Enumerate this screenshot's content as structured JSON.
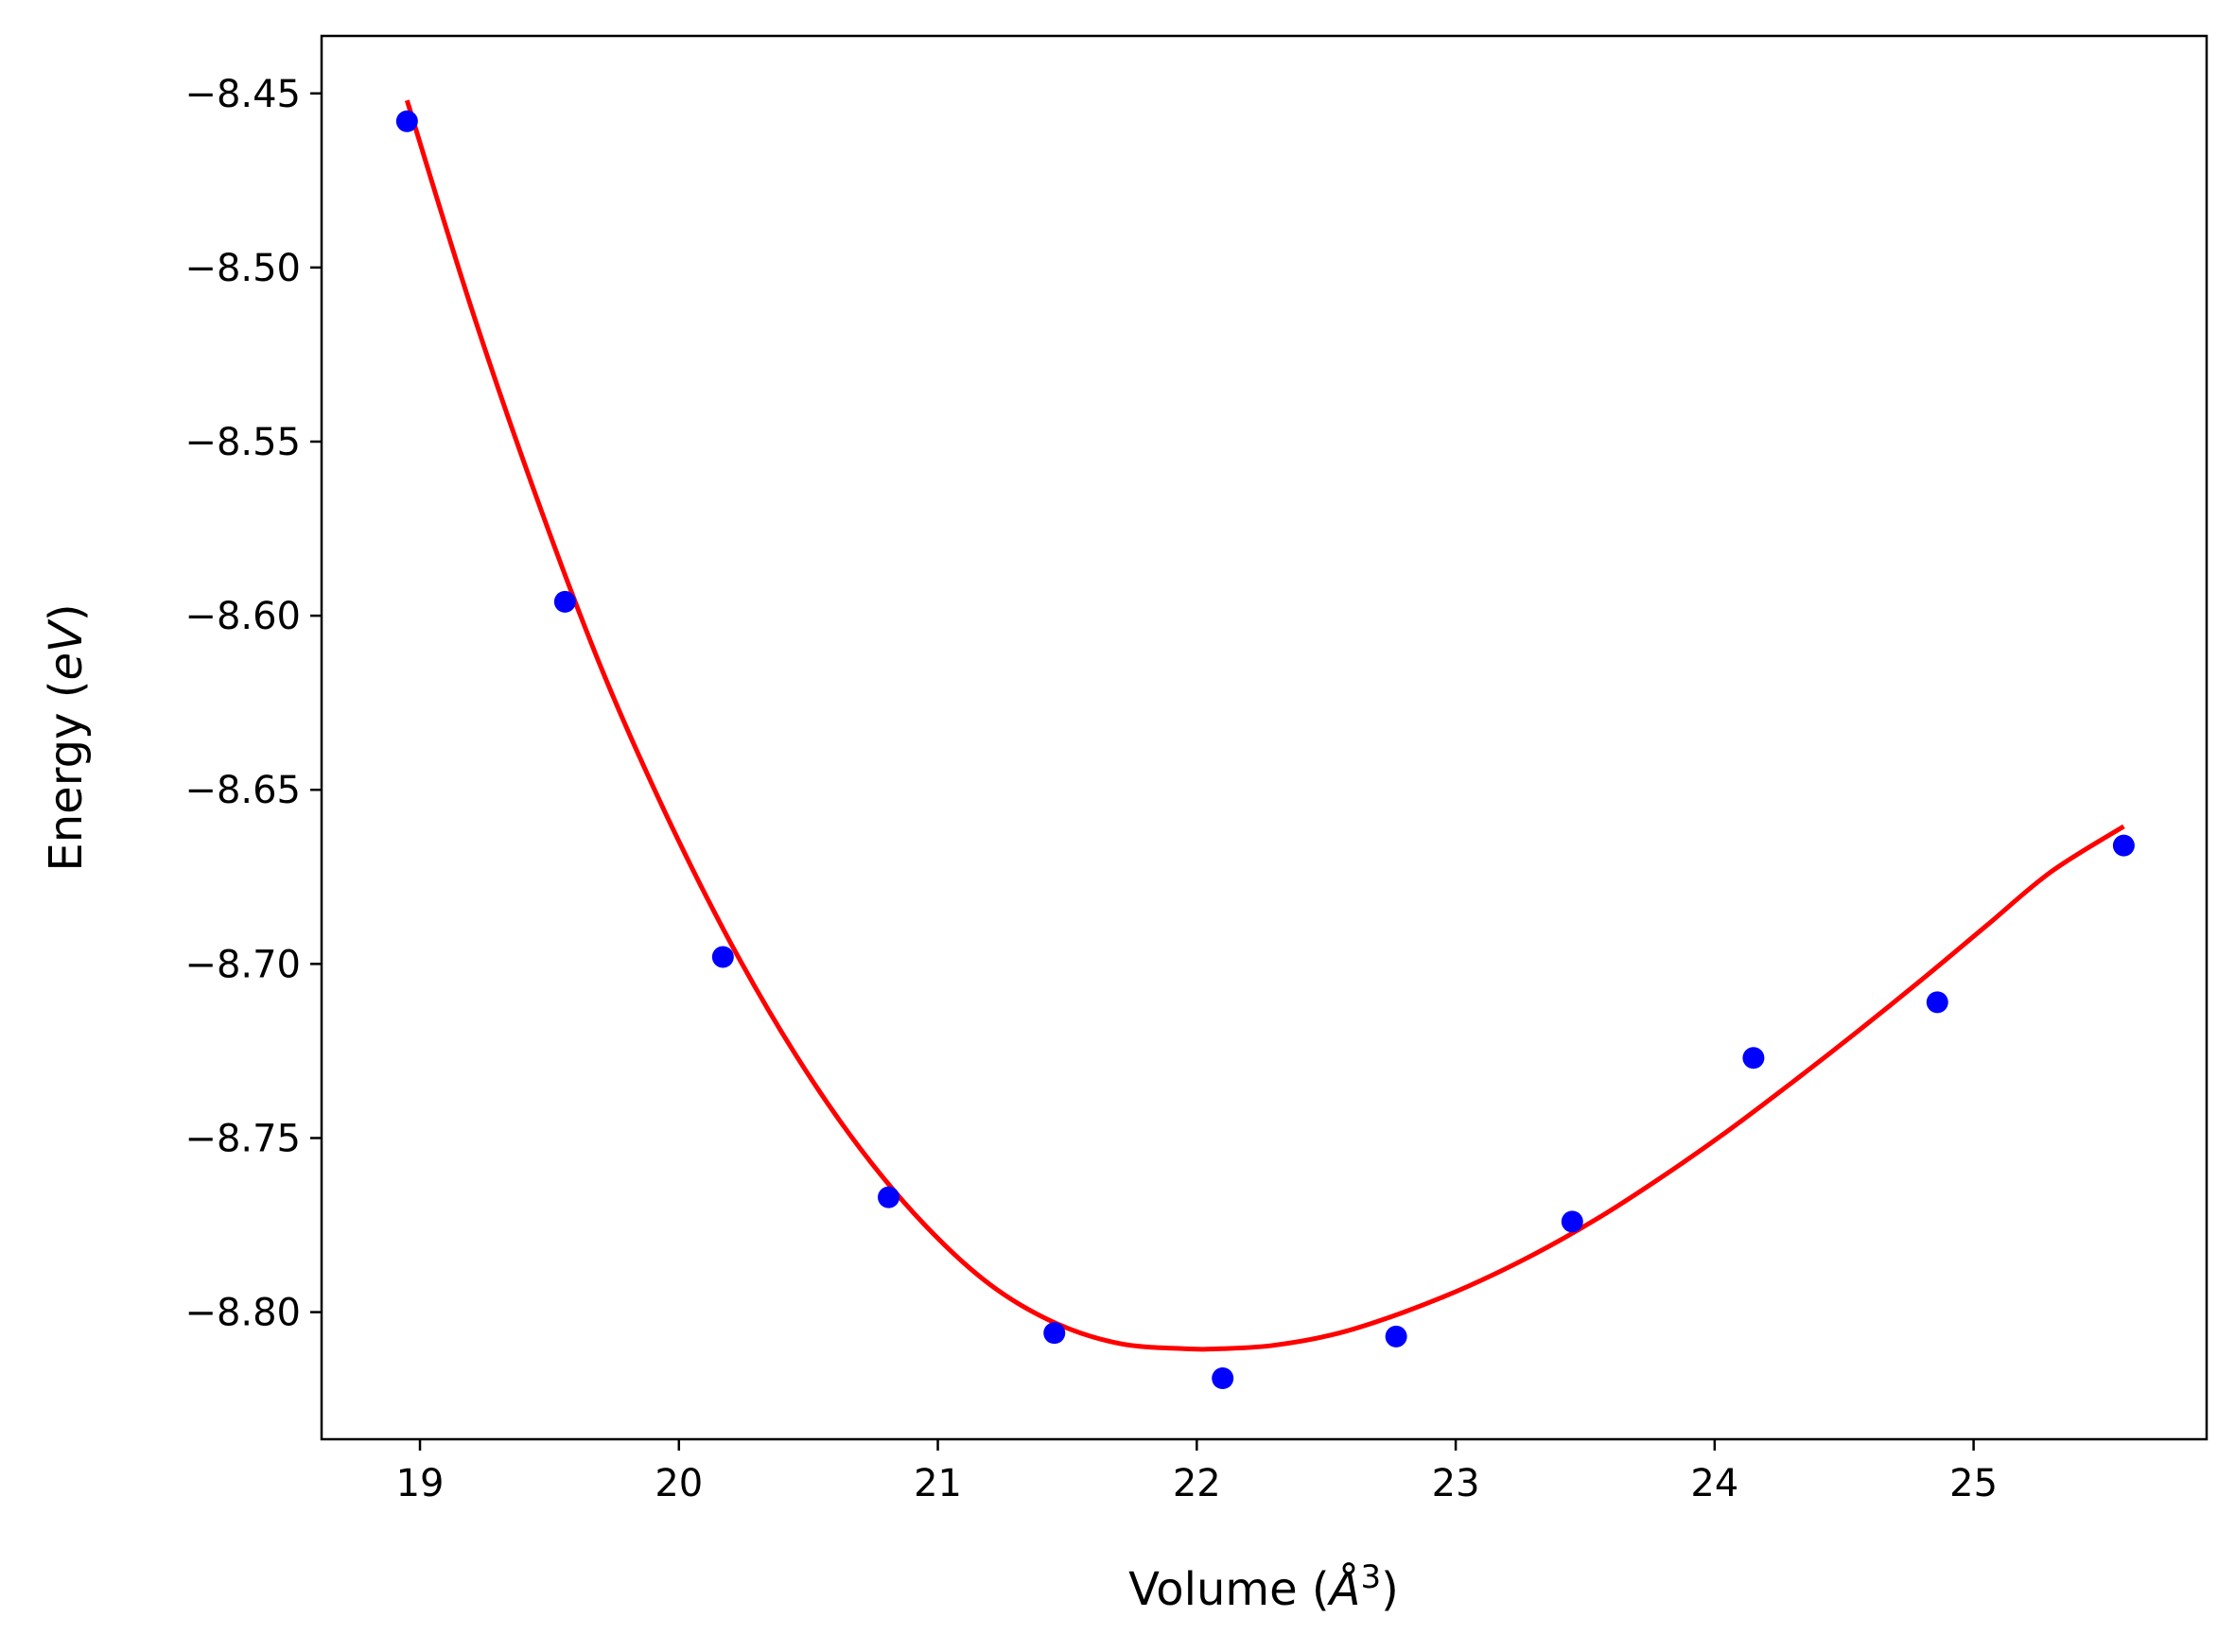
{
  "chart_data": {
    "type": "scatter",
    "title": "",
    "xlabel": {
      "prefix": "Volume (",
      "math": "Å",
      "sup": "3",
      "suffix": ")"
    },
    "ylabel": {
      "prefix": "Energy (",
      "math": "eV",
      "suffix": ")"
    },
    "xlim": [
      18.62,
      25.9
    ],
    "ylim": [
      -8.8365,
      -8.4335
    ],
    "xticks": [
      19,
      20,
      21,
      22,
      23,
      24,
      25
    ],
    "xtick_labels": [
      "19",
      "20",
      "21",
      "22",
      "23",
      "24",
      "25"
    ],
    "yticks": [
      -8.45,
      -8.5,
      -8.55,
      -8.6,
      -8.65,
      -8.7,
      -8.75,
      -8.8
    ],
    "ytick_labels": [
      "−8.45",
      "−8.50",
      "−8.55",
      "−8.60",
      "−8.65",
      "−8.70",
      "−8.75",
      "−8.80"
    ],
    "grid": false,
    "legend": "none",
    "series": [
      {
        "kind": "scatter",
        "color": "#0000ff",
        "x": [
          18.95,
          19.56,
          20.17,
          20.81,
          21.45,
          22.1,
          22.77,
          23.45,
          24.15,
          24.86,
          25.58
        ],
        "y": [
          -8.458,
          -8.596,
          -8.698,
          -8.767,
          -8.806,
          -8.819,
          -8.807,
          -8.774,
          -8.727,
          -8.711,
          -8.666
        ]
      },
      {
        "kind": "line",
        "color": "#ff0000",
        "x": [
          18.95,
          19.2,
          19.45,
          19.7,
          19.95,
          20.2,
          20.45,
          20.7,
          20.95,
          21.2,
          21.45,
          21.7,
          21.95,
          22.1,
          22.3,
          22.55,
          22.8,
          23.05,
          23.3,
          23.55,
          23.8,
          24.05,
          24.3,
          24.55,
          24.8,
          25.05,
          25.3,
          25.58
        ],
        "y": [
          -8.452,
          -8.512,
          -8.566,
          -8.615,
          -8.657,
          -8.694,
          -8.726,
          -8.753,
          -8.775,
          -8.792,
          -8.803,
          -8.809,
          -8.8105,
          -8.8105,
          -8.8095,
          -8.806,
          -8.8,
          -8.7925,
          -8.7835,
          -8.773,
          -8.761,
          -8.748,
          -8.734,
          -8.7195,
          -8.7045,
          -8.689,
          -8.6735,
          -8.6605
        ]
      }
    ]
  }
}
